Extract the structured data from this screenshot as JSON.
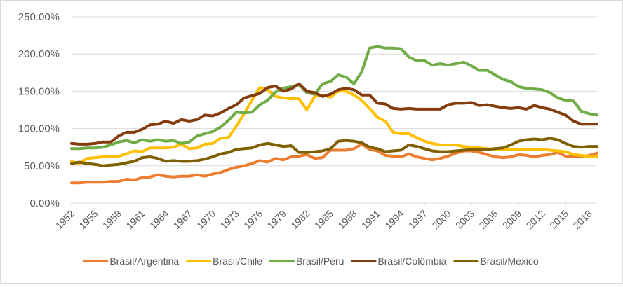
{
  "chart_data": {
    "type": "line",
    "title": "",
    "xlabel": "",
    "ylabel": "",
    "ylim": [
      0,
      250
    ],
    "y_ticks": [
      0,
      50,
      100,
      150,
      200,
      250
    ],
    "y_tick_labels": [
      "0.00%",
      "50.00%",
      "100.00%",
      "150.00%",
      "200.00%",
      "250.00%"
    ],
    "x_tick_labels": [
      "1952",
      "1955",
      "1958",
      "1961",
      "1964",
      "1967",
      "1970",
      "1973",
      "1976",
      "1979",
      "1982",
      "1985",
      "1988",
      "1991",
      "1994",
      "1997",
      "2000",
      "2003",
      "2006",
      "2009",
      "2012",
      "2015",
      "2018"
    ],
    "grid": true,
    "legend_position": "bottom",
    "x": [
      1952,
      1953,
      1954,
      1955,
      1956,
      1957,
      1958,
      1959,
      1960,
      1961,
      1962,
      1963,
      1964,
      1965,
      1966,
      1967,
      1968,
      1969,
      1970,
      1971,
      1972,
      1973,
      1974,
      1975,
      1976,
      1977,
      1978,
      1979,
      1980,
      1981,
      1982,
      1983,
      1984,
      1985,
      1986,
      1987,
      1988,
      1989,
      1990,
      1991,
      1992,
      1993,
      1994,
      1995,
      1996,
      1997,
      1998,
      1999,
      2000,
      2001,
      2002,
      2003,
      2004,
      2005,
      2006,
      2007,
      2008,
      2009,
      2010,
      2011,
      2012,
      2013,
      2014,
      2015,
      2016,
      2017,
      2018,
      2019
    ],
    "series": [
      {
        "name": "Brasil/Argentina",
        "color": "#ed7d31",
        "values": [
          27,
          27,
          28,
          28,
          28,
          29,
          29,
          32,
          31,
          34,
          35,
          38,
          36,
          35,
          36,
          36,
          38,
          36,
          39,
          41,
          45,
          48,
          50,
          53,
          57,
          55,
          60,
          58,
          62,
          63,
          65,
          60,
          61,
          71,
          71,
          71,
          73,
          79,
          72,
          70,
          64,
          63,
          62,
          66,
          62,
          60,
          58,
          60,
          63,
          67,
          70,
          70,
          68,
          65,
          62,
          61,
          62,
          65,
          64,
          62,
          64,
          65,
          68,
          63,
          62,
          62,
          64,
          67
        ]
      },
      {
        "name": "Brasil/Chile",
        "color": "#ffc000",
        "values": [
          56,
          53,
          60,
          61,
          62,
          63,
          63,
          66,
          70,
          69,
          74,
          74,
          74,
          75,
          79,
          73,
          74,
          79,
          80,
          87,
          88,
          103,
          120,
          138,
          155,
          152,
          143,
          141,
          140,
          140,
          125,
          143,
          145,
          142,
          150,
          150,
          145,
          138,
          127,
          115,
          110,
          95,
          93,
          93,
          88,
          83,
          80,
          78,
          78,
          78,
          76,
          75,
          74,
          73,
          72,
          72,
          72,
          72,
          72,
          72,
          72,
          71,
          70,
          69,
          65,
          64,
          62,
          62
        ]
      },
      {
        "name": "Brasil/Peru",
        "color": "#70ad47",
        "values": [
          73,
          73,
          74,
          74,
          75,
          78,
          82,
          84,
          81,
          85,
          83,
          85,
          83,
          84,
          80,
          82,
          90,
          93,
          96,
          102,
          111,
          122,
          121,
          122,
          132,
          138,
          149,
          154,
          156,
          159,
          148,
          146,
          160,
          163,
          172,
          169,
          160,
          176,
          208,
          210,
          208,
          208,
          207,
          196,
          191,
          191,
          185,
          187,
          185,
          187,
          189,
          184,
          178,
          178,
          172,
          166,
          163,
          156,
          154,
          153,
          152,
          148,
          141,
          138,
          137,
          123,
          120,
          118
        ]
      },
      {
        "name": "Brasil/Colômbia",
        "color": "#843c0c",
        "values": [
          80,
          79,
          79,
          80,
          82,
          82,
          90,
          95,
          95,
          99,
          105,
          106,
          110,
          107,
          112,
          110,
          112,
          118,
          117,
          121,
          127,
          132,
          141,
          144,
          147,
          155,
          157,
          150,
          153,
          160,
          150,
          148,
          143,
          146,
          152,
          154,
          152,
          145,
          145,
          134,
          133,
          127,
          126,
          127,
          126,
          126,
          126,
          126,
          132,
          134,
          134,
          135,
          131,
          132,
          130,
          128,
          127,
          128,
          126,
          131,
          128,
          126,
          122,
          118,
          110,
          106,
          106,
          106
        ]
      },
      {
        "name": "Brasil/México",
        "color": "#7f6000",
        "values": [
          53,
          55,
          53,
          52,
          50,
          51,
          52,
          54,
          56,
          61,
          62,
          60,
          56,
          57,
          56,
          56,
          57,
          59,
          62,
          66,
          68,
          72,
          73,
          74,
          78,
          80,
          78,
          76,
          77,
          68,
          68,
          69,
          70,
          73,
          83,
          84,
          83,
          81,
          75,
          73,
          69,
          70,
          71,
          78,
          76,
          73,
          70,
          69,
          69,
          70,
          71,
          72,
          72,
          72,
          73,
          74,
          78,
          83,
          85,
          86,
          85,
          87,
          85,
          80,
          76,
          75,
          76,
          76
        ]
      }
    ]
  }
}
